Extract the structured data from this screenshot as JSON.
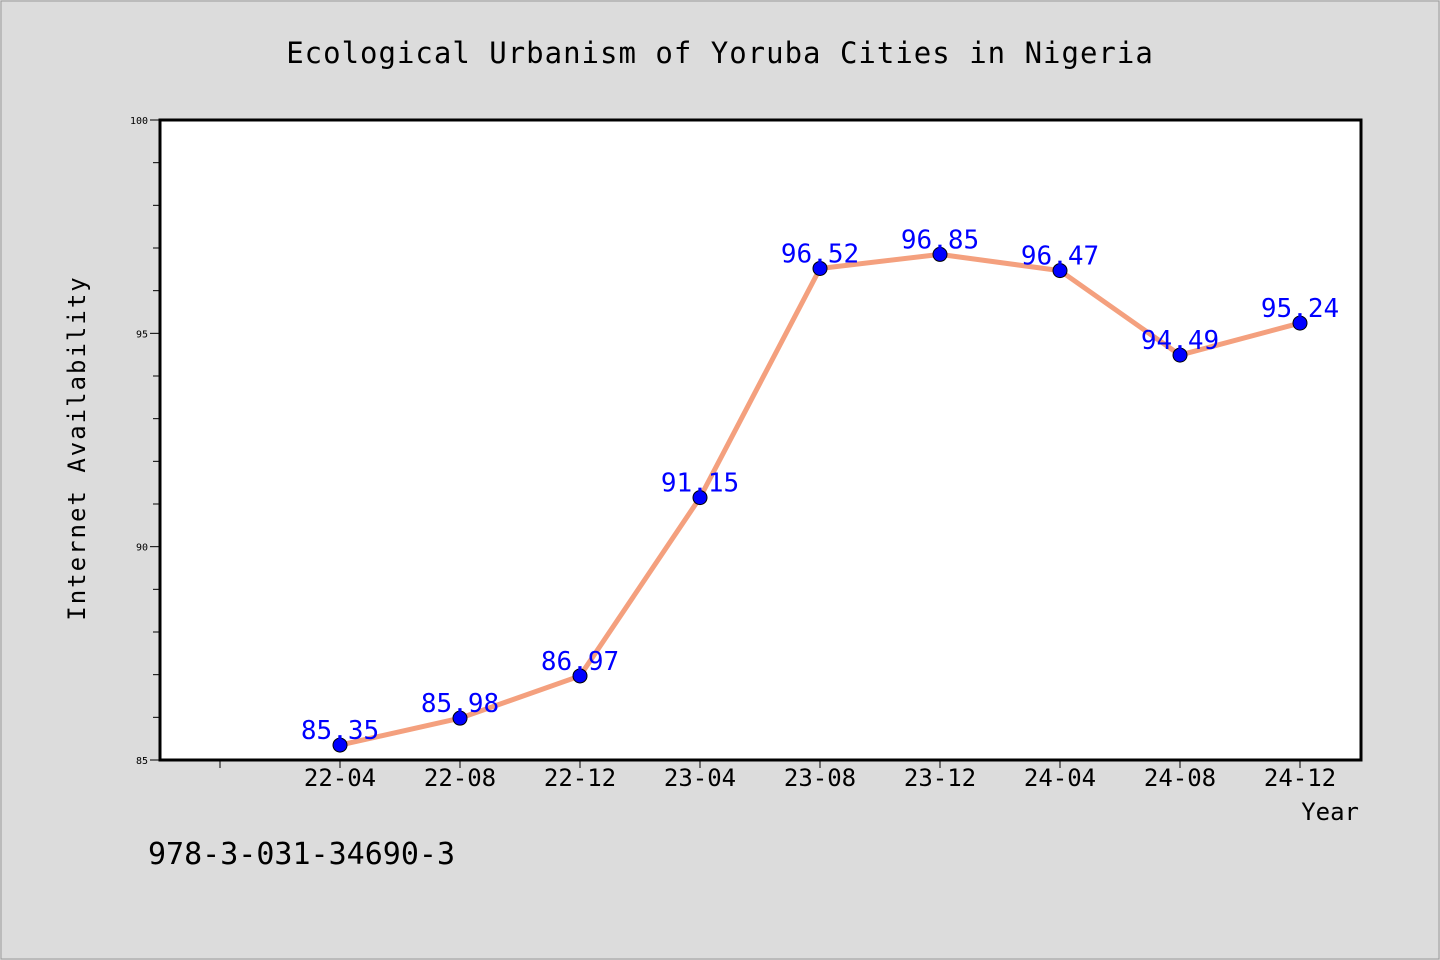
{
  "chart_data": {
    "type": "line",
    "title": "Ecological Urbanism of Yoruba Cities in Nigeria",
    "xlabel": "Year",
    "ylabel": "Internet Availability",
    "categories": [
      "22-04",
      "22-08",
      "22-12",
      "23-04",
      "23-08",
      "23-12",
      "24-04",
      "24-08",
      "24-12"
    ],
    "values": [
      85.35,
      85.98,
      86.97,
      91.15,
      96.52,
      96.85,
      96.47,
      94.49,
      95.24
    ],
    "data_labels": [
      "85.35",
      "85.98",
      "86.97",
      "91.15",
      "96.52",
      "96.85",
      "96.47",
      "94.49",
      "95.24"
    ],
    "ylim": [
      85,
      100
    ],
    "yticks": [
      "85",
      "90",
      "95",
      "100"
    ],
    "grid": false,
    "line_color": "#f4a07e",
    "marker_color": "#0000ff",
    "label_color": "#0000ff",
    "background_color": "#dcdcdc",
    "plot_background": "#ffffff"
  },
  "footer": {
    "isbn": "978-3-031-34690-3"
  }
}
